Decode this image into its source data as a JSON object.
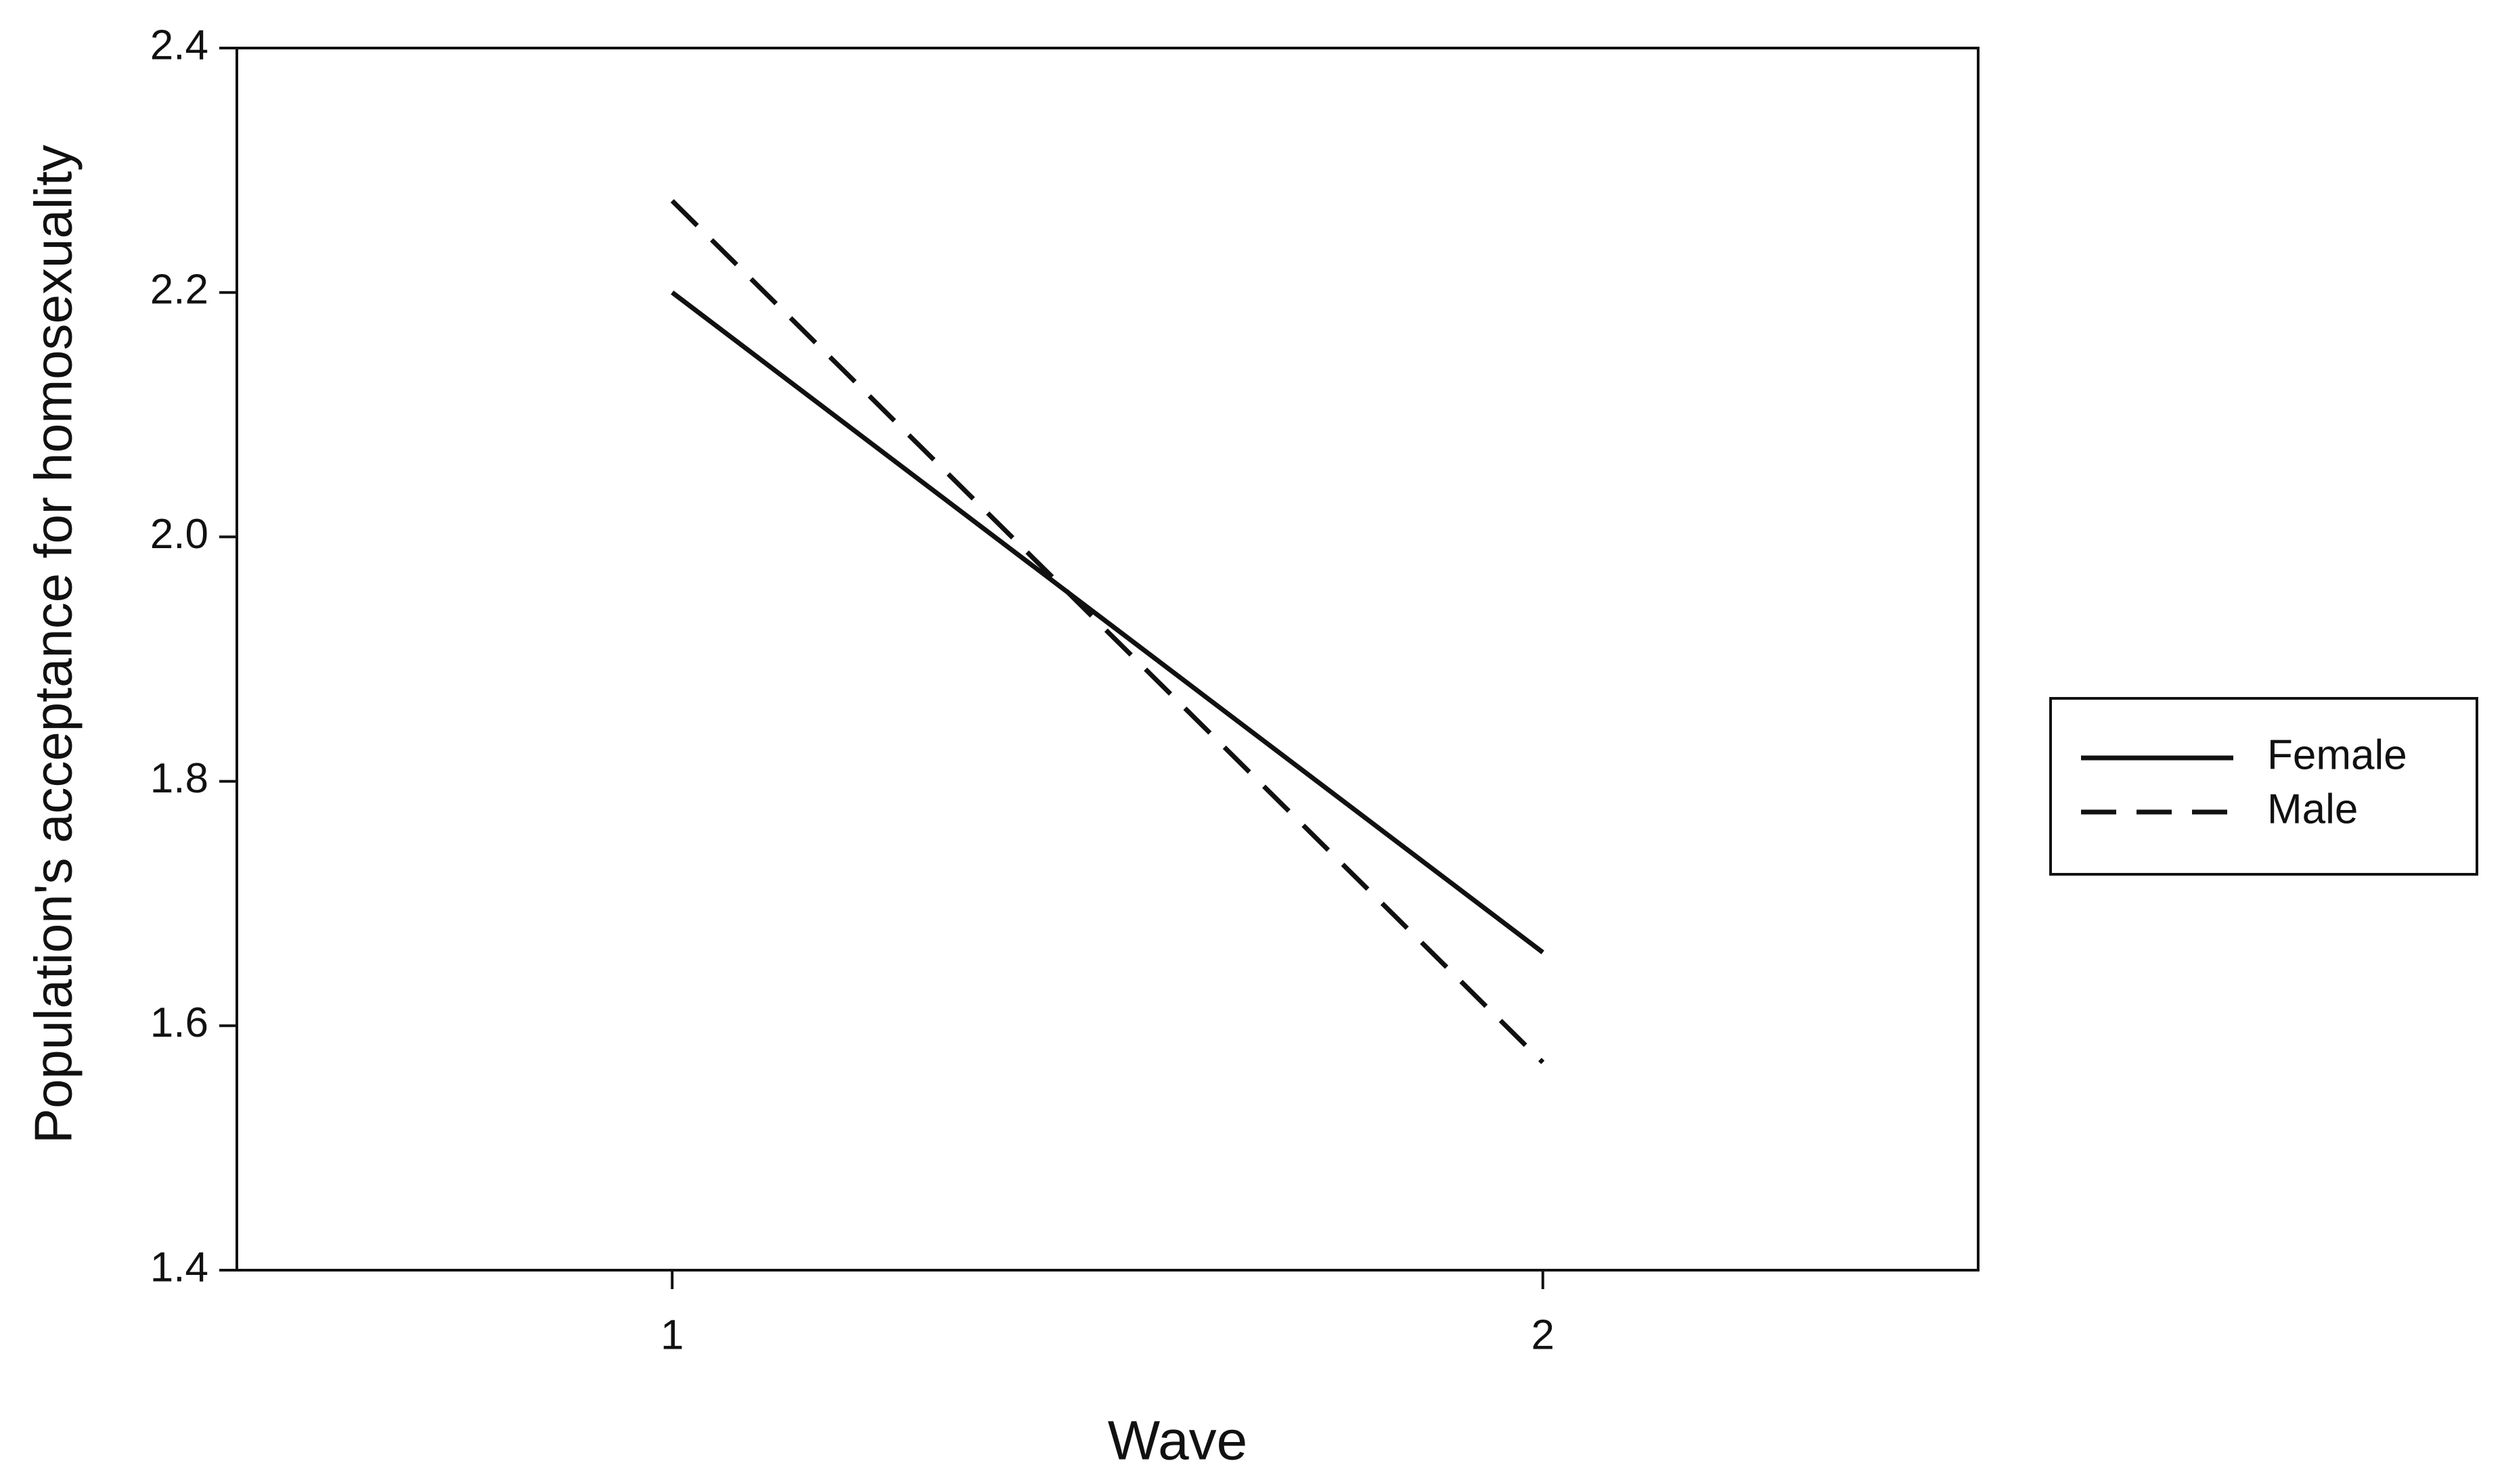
{
  "chart_data": {
    "type": "line",
    "x_label": "Wave",
    "y_label": "Population's acceptance for homosexuality",
    "x": [
      1,
      2
    ],
    "series": [
      {
        "name": "Female",
        "color": "#111111",
        "line_style": "solid",
        "values": [
          2.2,
          1.66
        ]
      },
      {
        "name": "Male",
        "color": "#111111",
        "line_style": "dashed",
        "values": [
          2.275,
          1.57
        ]
      }
    ],
    "xlim": [
      0.5,
      2.5
    ],
    "xticks": [
      1,
      2
    ],
    "ylim": [
      1.4,
      2.4
    ],
    "yticks": [
      1.4,
      1.6,
      1.8,
      {
        "value": 2,
        "label": "2.0"
      },
      2.2,
      2.4
    ],
    "grid": false,
    "legend": "right"
  }
}
